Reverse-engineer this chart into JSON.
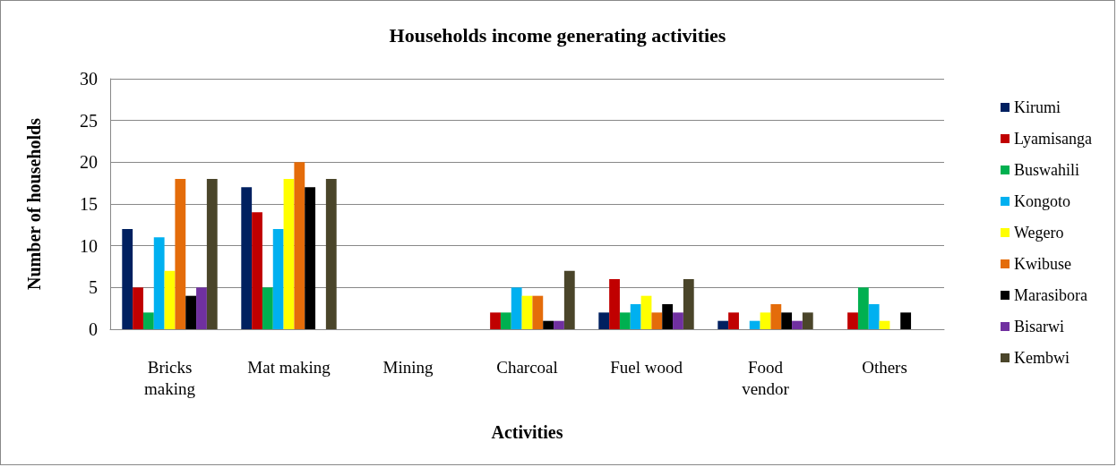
{
  "chart_data": {
    "type": "bar",
    "title": "Households income generating activities",
    "xlabel": "Activities",
    "ylabel": "Number of households",
    "categories": [
      "Bricks\nmaking",
      "Mat making",
      "Mining",
      "Charcoal",
      "Fuel wood",
      "Food\nvendor",
      "Others"
    ],
    "series": [
      {
        "name": "Kirumi",
        "color": "#002060",
        "values": [
          12,
          17,
          0,
          0,
          2,
          1,
          0
        ]
      },
      {
        "name": "Lyamisanga",
        "color": "#c00000",
        "values": [
          5,
          14,
          0,
          2,
          6,
          2,
          2
        ]
      },
      {
        "name": "Buswahili",
        "color": "#00b050",
        "values": [
          2,
          5,
          0,
          2,
          2,
          0,
          5
        ]
      },
      {
        "name": "Kongoto",
        "color": "#00b0f0",
        "values": [
          11,
          12,
          0,
          5,
          3,
          1,
          3
        ]
      },
      {
        "name": "Wegero",
        "color": "#ffff00",
        "values": [
          7,
          18,
          0,
          4,
          4,
          2,
          1
        ]
      },
      {
        "name": "Kwibuse",
        "color": "#e46c0a",
        "values": [
          18,
          20,
          0,
          4,
          2,
          3,
          0
        ]
      },
      {
        "name": "Marasibora",
        "color": "#000000",
        "values": [
          4,
          17,
          0,
          1,
          3,
          2,
          2
        ]
      },
      {
        "name": "Bisarwi",
        "color": "#7030a0",
        "values": [
          5,
          0,
          0,
          1,
          2,
          1,
          0
        ]
      },
      {
        "name": "Kembwi",
        "color": "#4a452a",
        "values": [
          18,
          18,
          0,
          7,
          6,
          2,
          0
        ]
      }
    ],
    "ylim": [
      0,
      30
    ],
    "yticks": [
      0,
      5,
      10,
      15,
      20,
      25,
      30
    ],
    "grid": "y",
    "legend": "right"
  }
}
